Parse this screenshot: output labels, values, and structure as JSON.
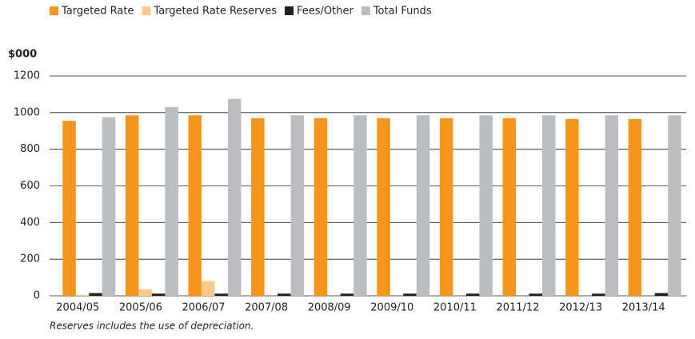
{
  "chart_data": {
    "type": "bar",
    "y_label": "$000",
    "footnote": "Reserves includes the use of depreciation.",
    "categories": [
      "2004/05",
      "2005/06",
      "2006/07",
      "2007/08",
      "2008/09",
      "2009/10",
      "2010/11",
      "2011/12",
      "2012/13",
      "2013/14"
    ],
    "series": [
      {
        "name": "Targeted Rate",
        "color": "#f7941d",
        "values": [
          955,
          985,
          985,
          970,
          970,
          970,
          970,
          970,
          965,
          965
        ]
      },
      {
        "name": "Targeted Rate Reserves",
        "color": "#fcc98a",
        "values": [
          5,
          35,
          80,
          0,
          0,
          0,
          0,
          0,
          0,
          0
        ]
      },
      {
        "name": "Fees/Other",
        "color": "#231f20",
        "values": [
          15,
          12,
          12,
          12,
          12,
          12,
          12,
          12,
          12,
          15
        ]
      },
      {
        "name": "Total Funds",
        "color": "#bcbdc0",
        "values": [
          975,
          1030,
          1075,
          985,
          985,
          985,
          985,
          985,
          985,
          985
        ]
      }
    ],
    "ylim": [
      0,
      1200
    ],
    "yticks": [
      0,
      200,
      400,
      600,
      800,
      1000,
      1200
    ],
    "grid": true
  }
}
